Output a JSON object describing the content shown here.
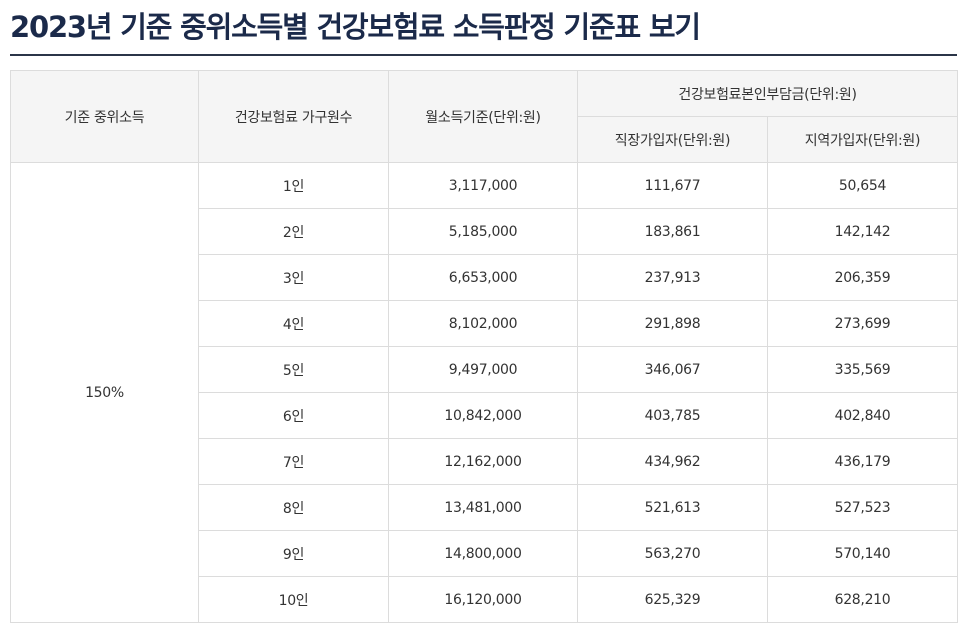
{
  "title": "2023년 기준 중위소득별 건강보험료 소득판정 기준표 보기",
  "table": {
    "headers": {
      "median_income": "기준 중위소득",
      "household_size": "건강보험료 가구원수",
      "monthly_income": "월소득기준(단위:원)",
      "premium_group": "건강보험료본인부담금(단위:원)",
      "employee": "직장가입자(단위:원)",
      "regional": "지역가입자(단위:원)"
    },
    "median_value": "150%",
    "rows": [
      {
        "household": "1인",
        "monthly": "3,117,000",
        "employee": "111,677",
        "regional": "50,654"
      },
      {
        "household": "2인",
        "monthly": "5,185,000",
        "employee": "183,861",
        "regional": "142,142"
      },
      {
        "household": "3인",
        "monthly": "6,653,000",
        "employee": "237,913",
        "regional": "206,359"
      },
      {
        "household": "4인",
        "monthly": "8,102,000",
        "employee": "291,898",
        "regional": "273,699"
      },
      {
        "household": "5인",
        "monthly": "9,497,000",
        "employee": "346,067",
        "regional": "335,569"
      },
      {
        "household": "6인",
        "monthly": "10,842,000",
        "employee": "403,785",
        "regional": "402,840"
      },
      {
        "household": "7인",
        "monthly": "12,162,000",
        "employee": "434,962",
        "regional": "436,179"
      },
      {
        "household": "8인",
        "monthly": "13,481,000",
        "employee": "521,613",
        "regional": "527,523"
      },
      {
        "household": "9인",
        "monthly": "14,800,000",
        "employee": "563,270",
        "regional": "570,140"
      },
      {
        "household": "10인",
        "monthly": "16,120,000",
        "employee": "625,329",
        "regional": "628,210"
      }
    ]
  }
}
